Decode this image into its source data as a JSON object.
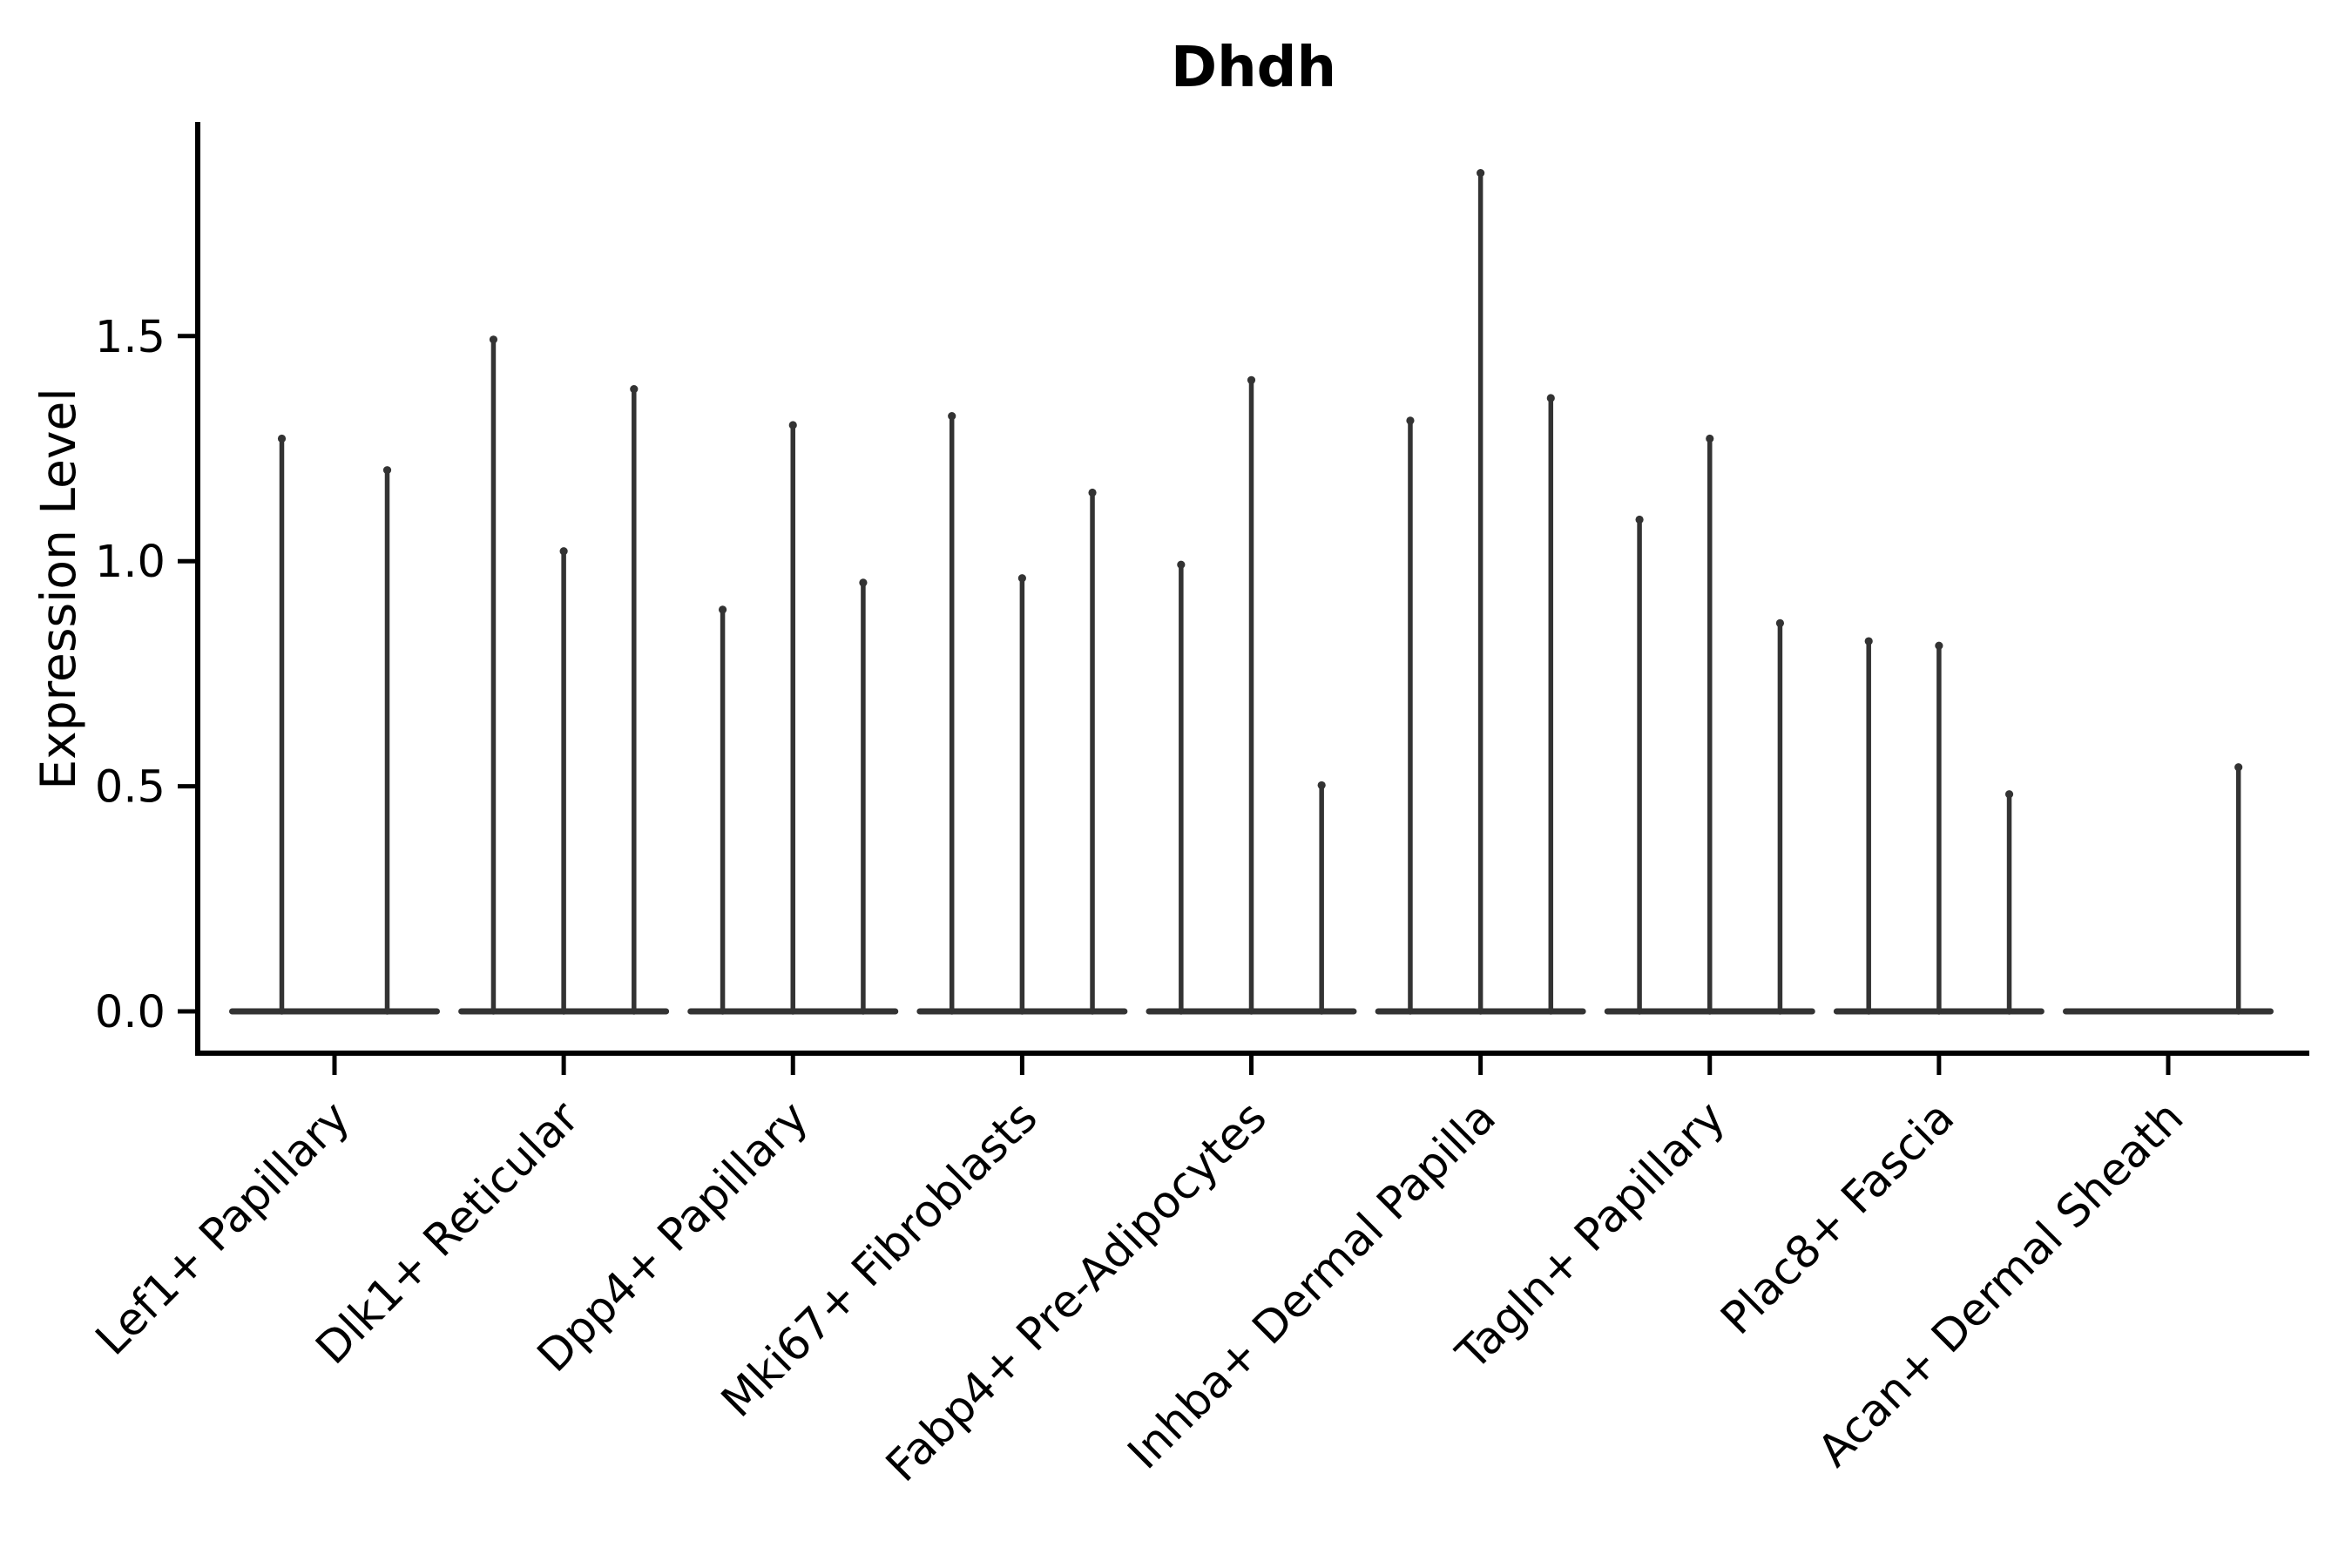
{
  "chart_data": {
    "type": "violin",
    "title": "Dhdh",
    "ylabel": "Expression Level",
    "xlabel": "",
    "yticks": [
      0.0,
      0.5,
      1.0,
      1.5
    ],
    "ylim": [
      -0.09,
      1.98
    ],
    "grid": false,
    "legend": null,
    "categories": [
      "Lef1+ Papillary",
      "Dlk1+ Reticular",
      "Dpp4+ Papillary",
      "Mki67+ Fibroblasts",
      "Fabp4+ Pre-Adipocytes",
      "Inhba+ Dermal Papilla",
      "Tagln+ Papillary",
      "Plac8+ Fascia",
      "Acan+ Dermal Sheath"
    ],
    "series": [
      {
        "category": "Lef1+ Papillary",
        "violin_max_values": [
          1.28,
          1.21
        ]
      },
      {
        "category": "Dlk1+ Reticular",
        "violin_max_values": [
          1.5,
          1.03,
          1.39
        ]
      },
      {
        "category": "Dpp4+ Papillary",
        "violin_max_values": [
          0.9,
          1.31,
          0.96
        ]
      },
      {
        "category": "Mki67+ Fibroblasts",
        "violin_max_values": [
          1.33,
          0.97,
          1.16
        ]
      },
      {
        "category": "Fabp4+ Pre-Adipocytes",
        "violin_max_values": [
          1.0,
          1.41,
          0.51
        ]
      },
      {
        "category": "Inhba+ Dermal Papilla",
        "violin_max_values": [
          1.32,
          1.87,
          1.37
        ]
      },
      {
        "category": "Tagln+ Papillary",
        "violin_max_values": [
          1.1,
          1.28,
          0.87
        ]
      },
      {
        "category": "Plac8+ Fascia",
        "violin_max_values": [
          0.83,
          0.82,
          0.49
        ]
      },
      {
        "category": "Acan+ Dermal Sheath",
        "violin_max_values": [
          0.0,
          0.0,
          0.55
        ]
      }
    ],
    "baseline_value": 0.0,
    "colors": {
      "violin": "#333333",
      "spine": "#000000",
      "text": "#000000",
      "background": "#ffffff"
    }
  }
}
